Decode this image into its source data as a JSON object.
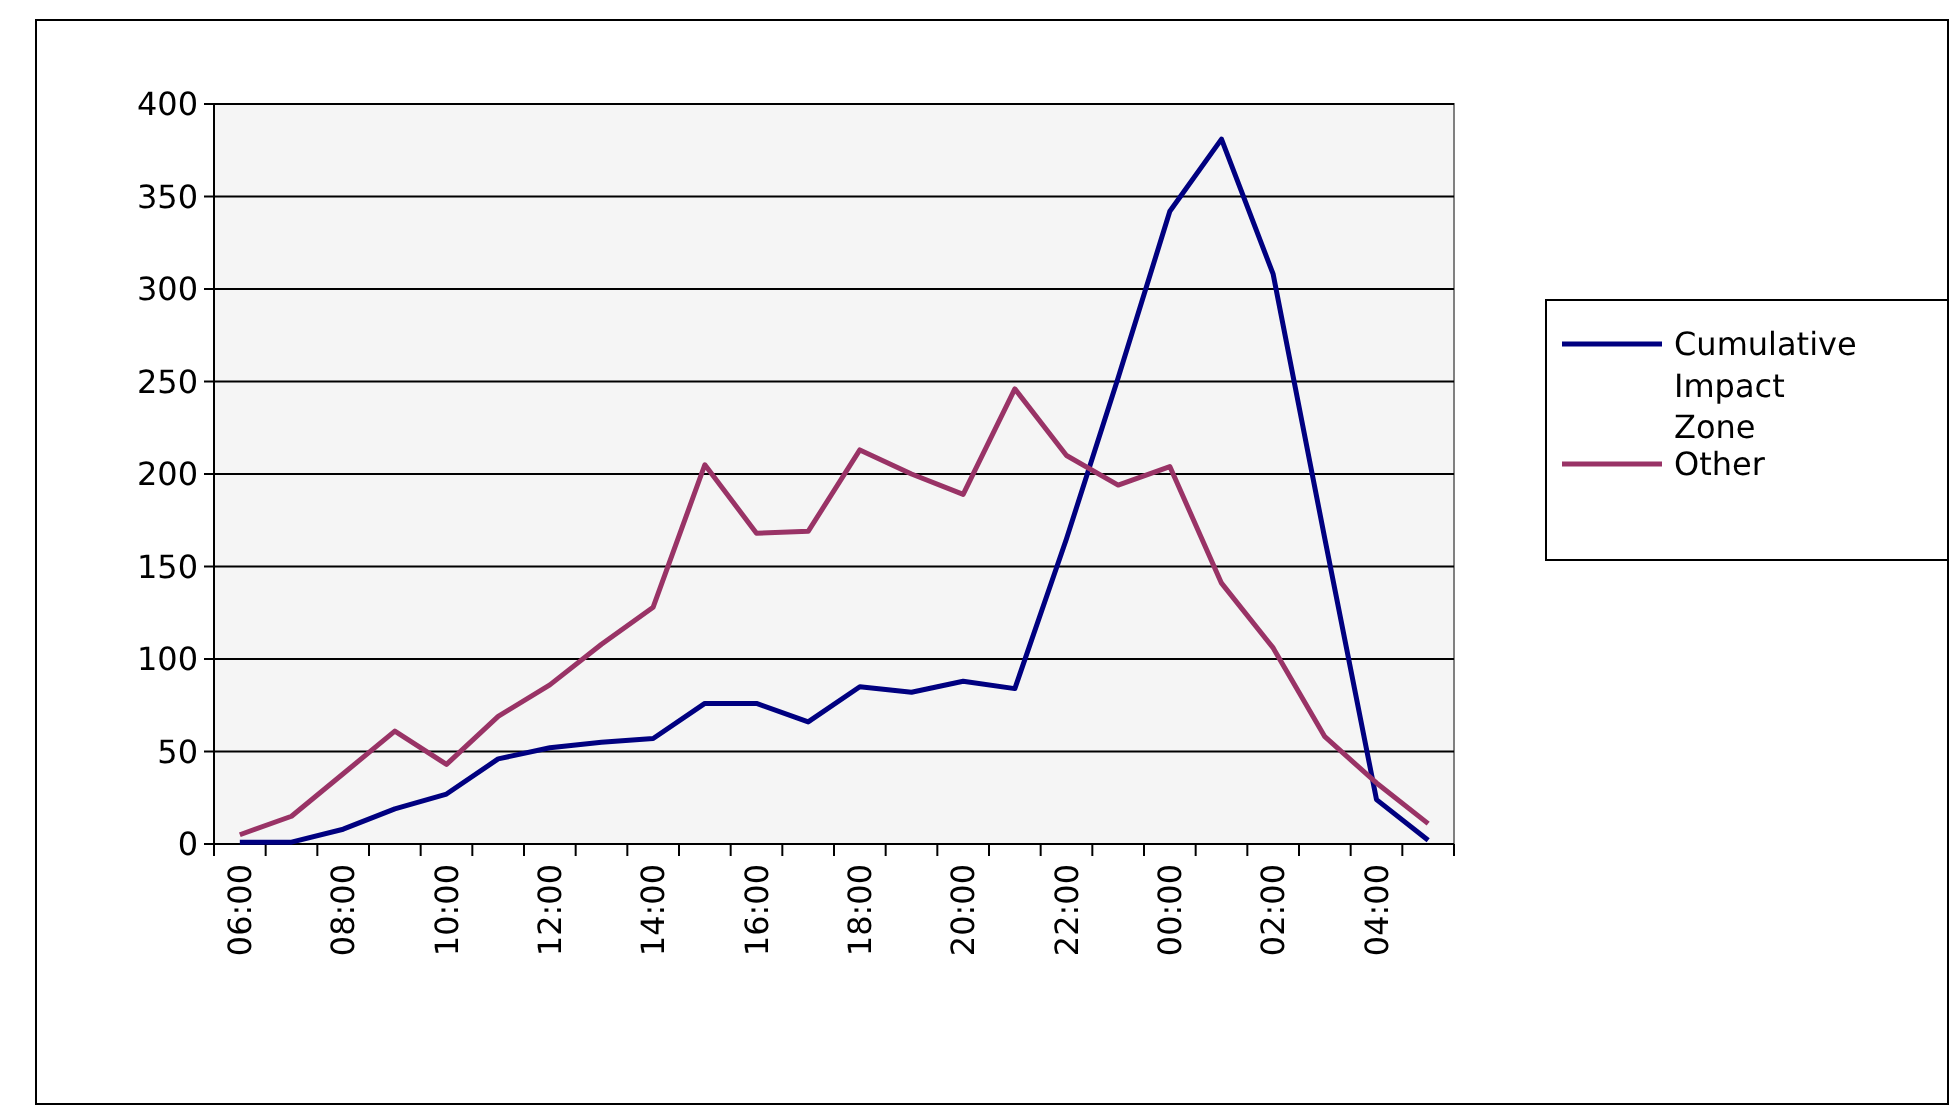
{
  "chart_data": {
    "type": "line",
    "categories": [
      "06:00",
      null,
      "08:00",
      null,
      "10:00",
      null,
      "12:00",
      null,
      "14:00",
      null,
      "16:00",
      null,
      "18:00",
      null,
      "20:00",
      null,
      "22:00",
      null,
      "00:00",
      null,
      "02:00",
      null,
      "04:00",
      null
    ],
    "series": [
      {
        "name": "Cumulative Impact Zone",
        "color": "#000080",
        "values": [
          1,
          1,
          8,
          19,
          27,
          46,
          52,
          55,
          57,
          76,
          76,
          66,
          85,
          82,
          88,
          84,
          165,
          252,
          342,
          381,
          308,
          165,
          24,
          2
        ]
      },
      {
        "name": "Other",
        "color": "#993366",
        "values": [
          5,
          15,
          38,
          61,
          43,
          69,
          86,
          108,
          128,
          205,
          168,
          169,
          213,
          200,
          189,
          246,
          210,
          194,
          204,
          141,
          106,
          58,
          33,
          11
        ]
      }
    ],
    "ylim": [
      0,
      400
    ],
    "yticks": [
      0,
      50,
      100,
      150,
      200,
      250,
      300,
      350,
      400
    ],
    "grid": "y",
    "legend": "right",
    "marker": "none",
    "line_style": "solid"
  }
}
